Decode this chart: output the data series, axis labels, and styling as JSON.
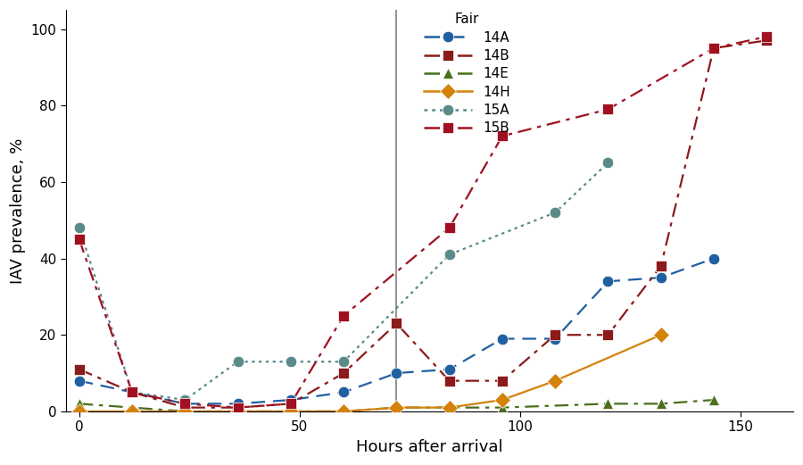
{
  "series": {
    "14A": {
      "x": [
        0,
        12,
        24,
        36,
        48,
        60,
        72,
        84,
        96,
        108,
        120,
        132,
        144
      ],
      "y": [
        8,
        5,
        2,
        2,
        3,
        5,
        10,
        11,
        19,
        19,
        34,
        35,
        40
      ],
      "color": "#2060a0",
      "linestyle": "dashed",
      "marker": "o",
      "markersize": 9
    },
    "14B": {
      "x": [
        0,
        12,
        24,
        36,
        48,
        60,
        72,
        84,
        96,
        108,
        120,
        132,
        144,
        156
      ],
      "y": [
        11,
        5,
        1,
        1,
        2,
        10,
        23,
        8,
        8,
        20,
        20,
        38,
        95,
        97
      ],
      "color": "#8b1a1a",
      "linestyle": "dashdot",
      "marker": "s",
      "markersize": 9
    },
    "14E": {
      "x": [
        0,
        12,
        24,
        36,
        48,
        60,
        72,
        84,
        96,
        120,
        132,
        144
      ],
      "y": [
        2,
        1,
        0,
        0,
        0,
        0,
        1,
        1,
        1,
        2,
        2,
        3
      ],
      "color": "#4a6e1a",
      "linestyle": "dashdot",
      "marker": "^",
      "markersize": 9
    },
    "14H": {
      "x": [
        0,
        12,
        24,
        36,
        48,
        60,
        72,
        84,
        96,
        108,
        132
      ],
      "y": [
        0,
        0,
        0,
        0,
        0,
        0,
        1,
        1,
        3,
        8,
        20
      ],
      "color": "#d4820a",
      "linestyle": "solid",
      "marker": "D",
      "markersize": 9
    },
    "15A": {
      "x": [
        0,
        12,
        24,
        36,
        48,
        60,
        84,
        108,
        120
      ],
      "y": [
        48,
        5,
        3,
        13,
        13,
        13,
        41,
        52,
        65
      ],
      "color": "#5b8a8a",
      "linestyle": "dotted",
      "marker": "o",
      "markersize": 9
    },
    "15B": {
      "x": [
        0,
        12,
        24,
        36,
        48,
        60,
        84,
        96,
        120,
        144,
        156
      ],
      "y": [
        45,
        5,
        2,
        1,
        2,
        25,
        48,
        72,
        79,
        95,
        98
      ],
      "color": "#a01020",
      "linestyle": "dashdot",
      "marker": "s",
      "markersize": 9
    }
  },
  "vline_x": 72,
  "xlabel": "Hours after arrival",
  "ylabel": "IAV prevalence, %",
  "ylim": [
    0,
    105
  ],
  "xlim": [
    -3,
    162
  ],
  "xticks": [
    0,
    50,
    100,
    150
  ],
  "yticks": [
    0,
    20,
    40,
    60,
    80,
    100
  ],
  "legend_title": "Fair",
  "background_color": "#ffffff",
  "axis_fontsize": 13,
  "tick_fontsize": 11,
  "legend_fontsize": 11
}
